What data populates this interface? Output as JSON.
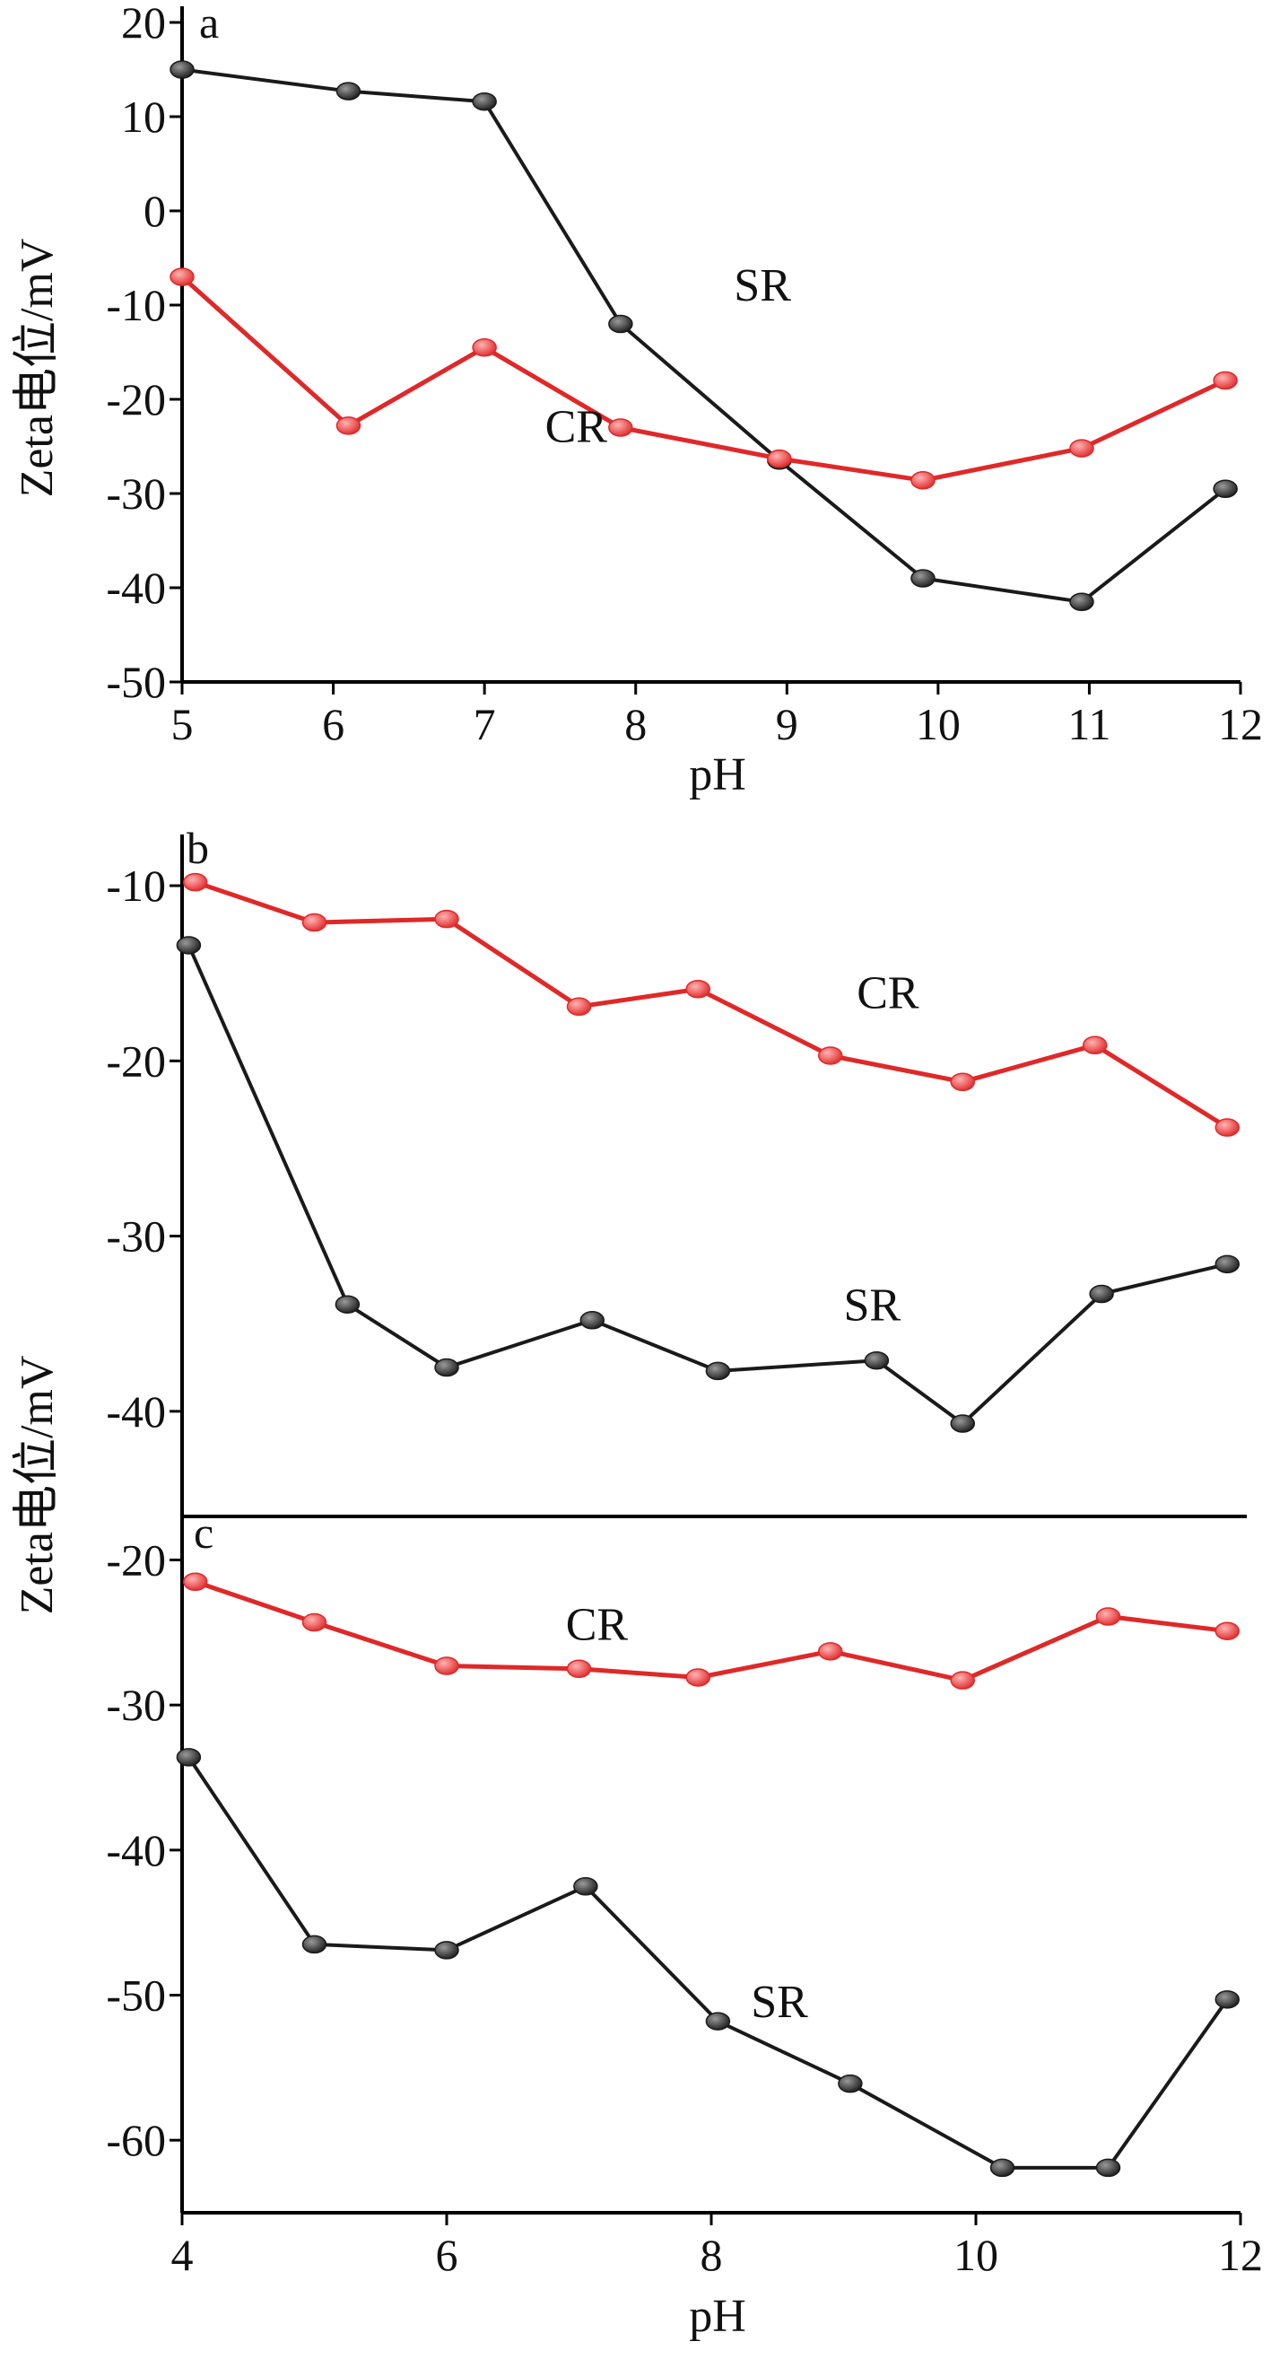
{
  "colors": {
    "SR": "#1a1a1a",
    "CR": "#e02828",
    "axis": "#000000"
  },
  "shared": {
    "ylabel": "Zeta电位/mV"
  },
  "chart_data": [
    {
      "type": "line",
      "panel": "a",
      "xlabel": "pH",
      "ylabel": "Zeta电位/mV",
      "xlim": [
        5,
        12
      ],
      "ylim": [
        -50,
        20
      ],
      "xticks": [
        5,
        6,
        7,
        8,
        9,
        10,
        11,
        12
      ],
      "yticks": [
        20,
        10,
        0,
        -10,
        -20,
        -30,
        -40,
        -50
      ],
      "series": [
        {
          "name": "SR",
          "color_key": "SR",
          "label_at": [
            8.65,
            -9.5
          ],
          "x": [
            5.0,
            6.1,
            7.0,
            7.9,
            8.95,
            9.9,
            10.95,
            11.9
          ],
          "y": [
            15.0,
            12.7,
            11.6,
            -12.0,
            -26.5,
            -39.0,
            -41.5,
            -29.5
          ]
        },
        {
          "name": "CR",
          "color_key": "CR",
          "label_at": [
            7.4,
            -24.5
          ],
          "x": [
            5.0,
            6.1,
            7.0,
            7.9,
            8.95,
            9.9,
            10.95,
            11.9
          ],
          "y": [
            -7.0,
            -22.8,
            -14.5,
            -23.0,
            -26.3,
            -28.6,
            -25.2,
            -18.0
          ]
        }
      ]
    },
    {
      "type": "line",
      "panel": "b",
      "xlabel": "",
      "ylabel": "Zeta电位/mV",
      "xlim": [
        4,
        12
      ],
      "ylim": [
        -46,
        -8
      ],
      "xticks": [],
      "yticks": [
        -10,
        -20,
        -30,
        -40
      ],
      "series": [
        {
          "name": "CR",
          "color_key": "CR",
          "label_at": [
            9.1,
            -17.0
          ],
          "x": [
            4.1,
            5.0,
            6.0,
            7.0,
            7.9,
            8.9,
            9.9,
            10.9,
            11.9
          ],
          "y": [
            -9.8,
            -12.1,
            -11.9,
            -16.9,
            -15.9,
            -19.7,
            -21.2,
            -19.1,
            -23.8
          ]
        },
        {
          "name": "SR",
          "color_key": "SR",
          "label_at": [
            9.0,
            -34.8
          ],
          "x": [
            4.05,
            5.25,
            6.0,
            7.1,
            8.05,
            9.25,
            9.9,
            10.95,
            11.9
          ],
          "y": [
            -13.4,
            -33.9,
            -37.5,
            -34.8,
            -37.7,
            -37.1,
            -40.7,
            -33.3,
            -31.6
          ]
        }
      ]
    },
    {
      "type": "line",
      "panel": "c",
      "xlabel": "pH",
      "ylabel": "Zeta电位/mV",
      "xlim": [
        4,
        12
      ],
      "ylim": [
        -65,
        -17
      ],
      "xticks": [
        4,
        6,
        8,
        10,
        12
      ],
      "yticks": [
        -20,
        -30,
        -40,
        -50,
        -60
      ],
      "series": [
        {
          "name": "CR",
          "color_key": "CR",
          "label_at": [
            6.9,
            -25.5
          ],
          "x": [
            4.1,
            5.0,
            6.0,
            7.0,
            7.9,
            8.9,
            9.9,
            11.0,
            11.9
          ],
          "y": [
            -21.5,
            -24.3,
            -27.3,
            -27.5,
            -28.1,
            -26.3,
            -28.3,
            -23.9,
            -24.9
          ]
        },
        {
          "name": "SR",
          "color_key": "SR",
          "label_at": [
            8.3,
            -51.5
          ],
          "x": [
            4.05,
            5.0,
            6.0,
            7.05,
            8.05,
            9.05,
            10.2,
            11.0,
            11.9
          ],
          "y": [
            -33.6,
            -46.5,
            -46.9,
            -42.5,
            -51.8,
            -56.1,
            -61.9,
            -61.9,
            -50.3
          ]
        }
      ]
    }
  ]
}
